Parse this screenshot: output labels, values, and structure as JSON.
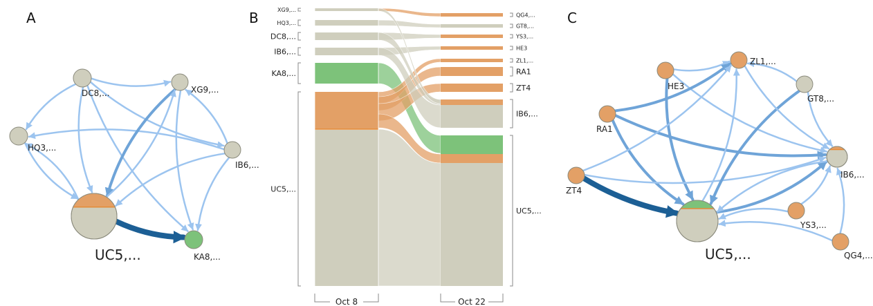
{
  "colors": {
    "gray_node": "#cfcebd",
    "orange_node": "#e3a066",
    "green_node": "#7dc27a",
    "orange_line": "#e58a36",
    "light_edge": "#9cc4ef",
    "mid_edge": "#6fa4d8",
    "dark_edge": "#1c5f95",
    "bracket": "#888888"
  },
  "panels": {
    "a": {
      "letter": "A",
      "nodes": [
        {
          "id": "dc8",
          "label": "DC8,...",
          "color": "gray"
        },
        {
          "id": "xg9",
          "label": "XG9,...",
          "color": "gray"
        },
        {
          "id": "hq3",
          "label": "HQ3,...",
          "color": "gray"
        },
        {
          "id": "ib6",
          "label": "IB6,...",
          "color": "gray"
        },
        {
          "id": "uc5",
          "label": "UC5,...",
          "color": "gray",
          "orange_share": 0.3
        },
        {
          "id": "ka8",
          "label": "KA8,...",
          "color": "green"
        }
      ],
      "edges": [
        {
          "from": "dc8",
          "to": "xg9",
          "weight": "light"
        },
        {
          "from": "dc8",
          "to": "hq3",
          "weight": "light"
        },
        {
          "from": "dc8",
          "to": "uc5",
          "weight": "light"
        },
        {
          "from": "dc8",
          "to": "ib6",
          "weight": "light"
        },
        {
          "from": "dc8",
          "to": "ka8",
          "weight": "light"
        },
        {
          "from": "hq3",
          "to": "uc5",
          "weight": "light"
        },
        {
          "from": "ib6",
          "to": "hq3",
          "weight": "light"
        },
        {
          "from": "ib6",
          "to": "xg9",
          "weight": "light"
        },
        {
          "from": "ib6",
          "to": "uc5",
          "weight": "light"
        },
        {
          "from": "ib6",
          "to": "ka8",
          "weight": "light"
        },
        {
          "from": "xg9",
          "to": "uc5",
          "weight": "mid"
        },
        {
          "from": "xg9",
          "to": "ka8",
          "weight": "light"
        },
        {
          "from": "uc5",
          "to": "hq3",
          "weight": "light"
        },
        {
          "from": "uc5",
          "to": "xg9",
          "weight": "light"
        },
        {
          "from": "uc5",
          "to": "ka8",
          "weight": "dark"
        }
      ]
    },
    "b": {
      "letter": "B",
      "left_column": {
        "date": "Oct 8",
        "blocks": [
          {
            "label": "XG9,...",
            "color": "gray",
            "label_size": "small"
          },
          {
            "label": "HQ3,...",
            "color": "gray",
            "label_size": "small"
          },
          {
            "label": "DC8,...",
            "color": "gray",
            "label_size": "normal"
          },
          {
            "label": "IB6,...",
            "color": "gray",
            "label_size": "normal"
          },
          {
            "label": "KA8,...",
            "color": "green",
            "label_size": "normal"
          },
          {
            "label": "UC5,...",
            "color": "mixed",
            "label_size": "normal"
          }
        ]
      },
      "right_column": {
        "date": "Oct 22",
        "blocks": [
          {
            "label": "QG4,...",
            "color": "orange",
            "label_size": "small"
          },
          {
            "label": "GT8,...",
            "color": "gray",
            "label_size": "small"
          },
          {
            "label": "YS3,...",
            "color": "orange",
            "label_size": "small"
          },
          {
            "label": "HE3",
            "color": "orange",
            "label_size": "small"
          },
          {
            "label": "ZL1,...",
            "color": "orange",
            "label_size": "small"
          },
          {
            "label": "RA1",
            "color": "orange",
            "label_size": "normal"
          },
          {
            "label": "ZT4",
            "color": "orange",
            "label_size": "normal"
          },
          {
            "label": "IB6,...",
            "color": "mixed",
            "label_size": "normal"
          },
          {
            "label": "UC5,...",
            "color": "mixed",
            "label_size": "normal"
          }
        ]
      }
    },
    "c": {
      "letter": "C",
      "nodes": [
        {
          "id": "zl1",
          "label": "ZL1,...",
          "color": "orange"
        },
        {
          "id": "he3",
          "label": "HE3",
          "color": "orange"
        },
        {
          "id": "gt8",
          "label": "GT8,...",
          "color": "gray"
        },
        {
          "id": "ra1",
          "label": "RA1",
          "color": "orange"
        },
        {
          "id": "ib6",
          "label": "IB6,...",
          "color": "gray",
          "orange_share": 0.15
        },
        {
          "id": "zt4",
          "label": "ZT4",
          "color": "orange"
        },
        {
          "id": "ys3",
          "label": "YS3,...",
          "color": "orange"
        },
        {
          "id": "uc5",
          "label": "UC5,...",
          "color": "gray",
          "green_share": 0.2
        },
        {
          "id": "qg4",
          "label": "QG4,...",
          "color": "orange"
        }
      ],
      "edges": [
        {
          "from": "he3",
          "to": "zl1",
          "weight": "light"
        },
        {
          "from": "he3",
          "to": "uc5",
          "weight": "mid"
        },
        {
          "from": "he3",
          "to": "ib6",
          "weight": "light"
        },
        {
          "from": "ra1",
          "to": "zl1",
          "weight": "mid"
        },
        {
          "from": "ra1",
          "to": "ib6",
          "weight": "mid"
        },
        {
          "from": "ra1",
          "to": "uc5",
          "weight": "mid"
        },
        {
          "from": "zt4",
          "to": "zl1",
          "weight": "light"
        },
        {
          "from": "zt4",
          "to": "ib6",
          "weight": "light"
        },
        {
          "from": "zt4",
          "to": "uc5",
          "weight": "dark"
        },
        {
          "from": "gt8",
          "to": "zl1",
          "weight": "light"
        },
        {
          "from": "gt8",
          "to": "uc5",
          "weight": "mid"
        },
        {
          "from": "gt8",
          "to": "ib6",
          "weight": "light"
        },
        {
          "from": "zl1",
          "to": "ib6",
          "weight": "light"
        },
        {
          "from": "uc5",
          "to": "zl1",
          "weight": "light"
        },
        {
          "from": "uc5",
          "to": "ib6",
          "weight": "mid"
        },
        {
          "from": "ib6",
          "to": "uc5",
          "weight": "light"
        },
        {
          "from": "ys3",
          "to": "ib6",
          "weight": "light"
        },
        {
          "from": "ys3",
          "to": "uc5",
          "weight": "light"
        },
        {
          "from": "qg4",
          "to": "ib6",
          "weight": "light"
        },
        {
          "from": "qg4",
          "to": "uc5",
          "weight": "light"
        }
      ]
    }
  }
}
